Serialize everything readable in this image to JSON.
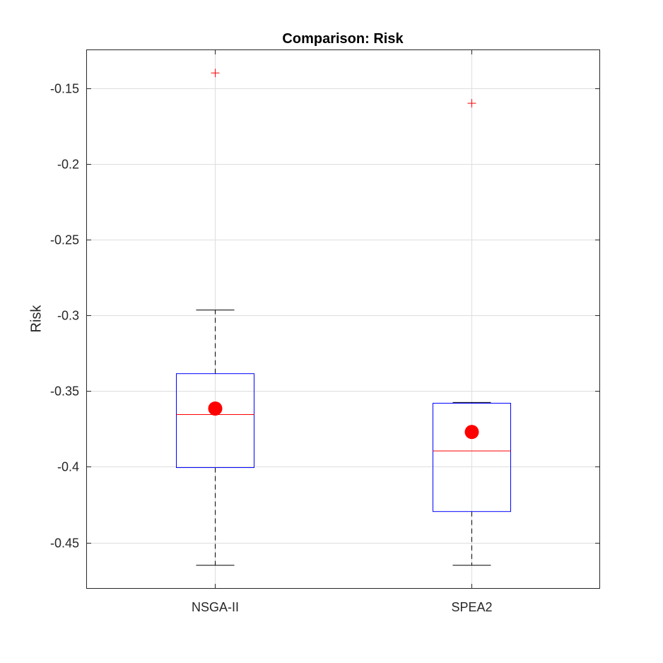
{
  "chart_data": {
    "type": "box",
    "title": "Comparison: Risk",
    "xlabel": "",
    "ylabel": "Risk",
    "categories": [
      "NSGA-II",
      "SPEA2"
    ],
    "ylim": [
      -0.4805,
      -0.1245
    ],
    "yticks": [
      -0.15,
      -0.2,
      -0.25,
      -0.3,
      -0.35,
      -0.4,
      -0.45
    ],
    "ytick_labels": [
      "-0.15",
      "-0.2",
      "-0.25",
      "-0.3",
      "-0.35",
      "-0.4",
      "-0.45"
    ],
    "grid": true,
    "boxes": [
      {
        "category": "NSGA-II",
        "whisker_low": -0.465,
        "q1": -0.4005,
        "median": -0.3655,
        "q3": -0.3385,
        "whisker_high": -0.2965,
        "mean": -0.3615,
        "outliers": [
          -0.14
        ]
      },
      {
        "category": "SPEA2",
        "whisker_low": -0.465,
        "q1": -0.4295,
        "median": -0.3895,
        "q3": -0.358,
        "whisker_high": -0.3575,
        "mean": -0.377,
        "outliers": [
          -0.16
        ]
      }
    ],
    "colors": {
      "box": "#0000ff",
      "median": "#ff0000",
      "whisker": "#000000",
      "outlier": "#ff0000",
      "mean": "#ff0000",
      "grid": "#dedede",
      "axes": "#262626"
    }
  }
}
